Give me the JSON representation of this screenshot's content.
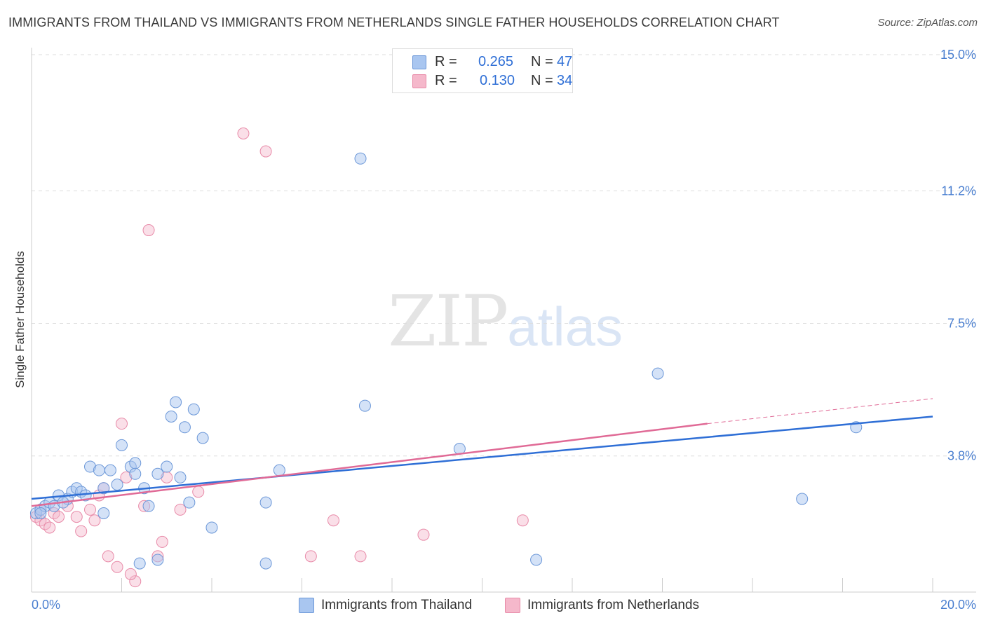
{
  "header": {
    "title": "IMMIGRANTS FROM THAILAND VS IMMIGRANTS FROM NETHERLANDS SINGLE FATHER HOUSEHOLDS CORRELATION CHART",
    "source": "Source: ZipAtlas.com"
  },
  "watermark": {
    "zip": "ZIP",
    "atlas": "atlas"
  },
  "legend": {
    "r_label": "R =",
    "n_label": "N =",
    "rows": [
      {
        "r": "0.265",
        "n": "47"
      },
      {
        "r": "0.130",
        "n": "34"
      }
    ]
  },
  "colors": {
    "thailand_fill": "#a9c6f0",
    "thailand_stroke": "#6b97d8",
    "thailand_line": "#2f6fd6",
    "netherlands_fill": "#f5b8cb",
    "netherlands_stroke": "#e88aa8",
    "netherlands_line": "#e06a96",
    "grid": "#dddddd",
    "tick_text": "#4a7fd0"
  },
  "chart_data": {
    "type": "scatter",
    "title": "IMMIGRANTS FROM THAILAND VS IMMIGRANTS FROM NETHERLANDS SINGLE FATHER HOUSEHOLDS CORRELATION CHART",
    "xlabel": "",
    "ylabel": "Single Father Households",
    "xlim": [
      0,
      20
    ],
    "ylim": [
      0,
      15
    ],
    "x_tick_labels": [
      "0.0%",
      "20.0%"
    ],
    "y_ticks": [
      3.8,
      7.5,
      11.2,
      15.0
    ],
    "y_tick_labels": [
      "3.8%",
      "7.5%",
      "11.2%",
      "15.0%"
    ],
    "grid": true,
    "legend_position": "top-center",
    "series": [
      {
        "name": "Immigrants from Thailand",
        "R": 0.265,
        "N": 47,
        "trend": {
          "x": [
            0,
            20
          ],
          "y": [
            2.6,
            4.9
          ]
        },
        "points": [
          [
            0.1,
            2.2
          ],
          [
            0.2,
            2.3
          ],
          [
            0.3,
            2.4
          ],
          [
            0.4,
            2.5
          ],
          [
            0.5,
            2.4
          ],
          [
            0.6,
            2.7
          ],
          [
            0.8,
            2.6
          ],
          [
            0.9,
            2.8
          ],
          [
            1.0,
            2.9
          ],
          [
            1.1,
            2.8
          ],
          [
            1.3,
            3.5
          ],
          [
            1.5,
            3.4
          ],
          [
            1.6,
            2.2
          ],
          [
            1.75,
            3.4
          ],
          [
            1.9,
            3.0
          ],
          [
            2.0,
            4.1
          ],
          [
            2.2,
            3.5
          ],
          [
            2.3,
            3.6
          ],
          [
            2.5,
            2.9
          ],
          [
            2.6,
            2.4
          ],
          [
            2.8,
            3.3
          ],
          [
            3.0,
            3.5
          ],
          [
            3.2,
            5.3
          ],
          [
            3.4,
            4.6
          ],
          [
            3.5,
            2.5
          ],
          [
            3.6,
            5.1
          ],
          [
            3.8,
            4.3
          ],
          [
            4.0,
            1.8
          ],
          [
            5.2,
            2.5
          ],
          [
            5.5,
            3.4
          ],
          [
            7.3,
            12.1
          ],
          [
            7.4,
            5.2
          ],
          [
            9.5,
            4.0
          ],
          [
            13.9,
            6.1
          ],
          [
            17.1,
            2.6
          ],
          [
            18.3,
            4.6
          ],
          [
            2.4,
            0.8
          ],
          [
            2.8,
            0.9
          ],
          [
            5.2,
            0.8
          ],
          [
            11.2,
            0.9
          ],
          [
            3.1,
            4.9
          ],
          [
            1.6,
            2.9
          ],
          [
            0.2,
            2.2
          ],
          [
            2.3,
            3.3
          ],
          [
            3.3,
            3.2
          ],
          [
            1.2,
            2.7
          ],
          [
            0.7,
            2.5
          ]
        ]
      },
      {
        "name": "Immigrants from Netherlands",
        "R": 0.13,
        "N": 34,
        "trend": {
          "x": [
            0,
            15
          ],
          "y": [
            2.4,
            4.7
          ]
        },
        "trend_dashed_extension": {
          "x": [
            15,
            20
          ],
          "y": [
            4.7,
            5.4
          ]
        },
        "points": [
          [
            0.1,
            2.1
          ],
          [
            0.2,
            2.0
          ],
          [
            0.3,
            1.9
          ],
          [
            0.4,
            1.8
          ],
          [
            0.5,
            2.2
          ],
          [
            0.6,
            2.1
          ],
          [
            0.8,
            2.4
          ],
          [
            1.0,
            2.1
          ],
          [
            1.1,
            1.7
          ],
          [
            1.3,
            2.3
          ],
          [
            1.4,
            2.0
          ],
          [
            1.5,
            2.7
          ],
          [
            1.6,
            2.9
          ],
          [
            1.7,
            1.0
          ],
          [
            2.0,
            4.7
          ],
          [
            2.1,
            3.2
          ],
          [
            2.3,
            0.3
          ],
          [
            2.5,
            2.4
          ],
          [
            2.6,
            10.1
          ],
          [
            2.8,
            1.0
          ],
          [
            2.9,
            1.4
          ],
          [
            3.0,
            3.2
          ],
          [
            3.3,
            2.3
          ],
          [
            3.7,
            2.8
          ],
          [
            4.7,
            12.8
          ],
          [
            5.2,
            12.3
          ],
          [
            6.2,
            1.0
          ],
          [
            6.7,
            2.0
          ],
          [
            7.3,
            1.0
          ],
          [
            8.7,
            1.6
          ],
          [
            10.9,
            2.0
          ],
          [
            2.2,
            0.5
          ],
          [
            1.9,
            0.7
          ],
          [
            0.2,
            2.3
          ]
        ]
      }
    ]
  },
  "bottom_legend": [
    {
      "label": "Immigrants from Thailand"
    },
    {
      "label": "Immigrants from Netherlands"
    }
  ]
}
